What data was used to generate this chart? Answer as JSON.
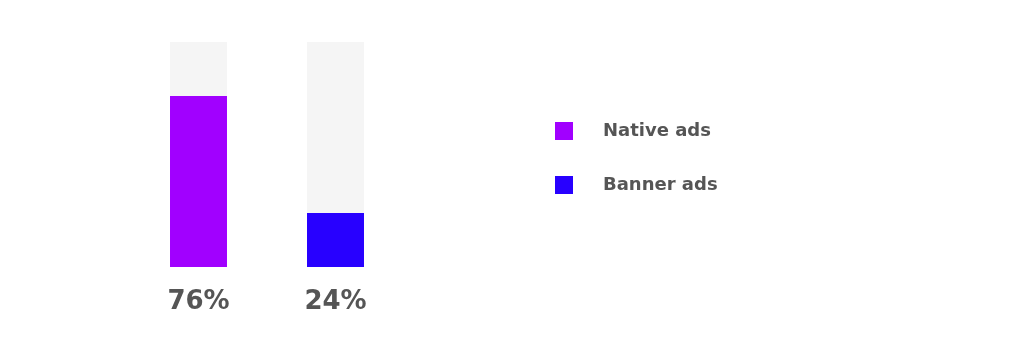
{
  "chart_data": {
    "type": "bar",
    "categories": [
      null,
      null
    ],
    "stacked": true,
    "ylim": [
      0,
      100
    ],
    "tick_labels": false,
    "legend": "right",
    "grid": false,
    "series": [
      {
        "name": "Native ads",
        "color": "#a100ff",
        "values": [
          76,
          null
        ],
        "value_labels": [
          "76%",
          null
        ]
      },
      {
        "name": "Banner ads",
        "color": "#2800ff",
        "values": [
          null,
          24
        ],
        "value_labels": [
          null,
          "24%"
        ]
      },
      {
        "color": "#f5f5f5",
        "values": [
          24,
          76
        ]
      }
    ]
  }
}
